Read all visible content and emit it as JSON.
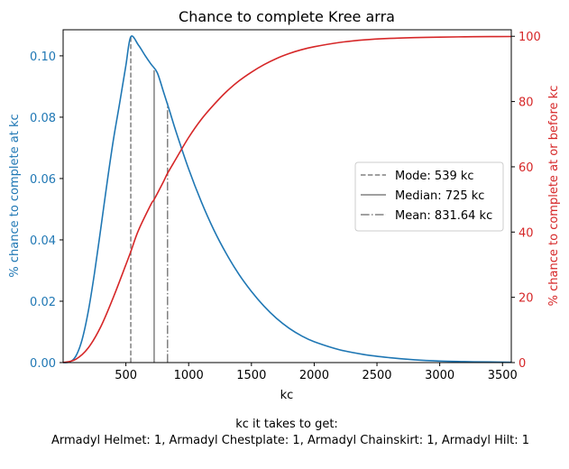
{
  "chart_data": {
    "type": "line",
    "title": "Chance to complete Kree arra",
    "xlabel": "kc",
    "ylabel_left": "% chance to complete at kc",
    "ylabel_right": "% chance to complete at or before kc",
    "xlim": [
      0,
      3570
    ],
    "ylim_left": [
      0,
      0.1085
    ],
    "ylim_right": [
      0,
      102
    ],
    "x_ticks": [
      500,
      1000,
      1500,
      2000,
      2500,
      3000,
      3500
    ],
    "x_tick_labels": [
      "500",
      "1000",
      "1500",
      "2000",
      "2500",
      "3000",
      "3500"
    ],
    "y_left_ticks": [
      0,
      0.02,
      0.04,
      0.06,
      0.08,
      0.1
    ],
    "y_left_tick_labels": [
      "0.00",
      "0.02",
      "0.04",
      "0.06",
      "0.08",
      "0.10"
    ],
    "y_right_ticks": [
      0,
      20,
      40,
      60,
      80,
      100
    ],
    "y_right_tick_labels": [
      "0",
      "20",
      "40",
      "60",
      "80",
      "100"
    ],
    "grid": false,
    "legend_position": "center-right",
    "colors": {
      "left": "#1f77b4",
      "right": "#d62728",
      "markers": "#808080"
    },
    "series": [
      {
        "axis": "left",
        "color": "#1f77b4",
        "x": [
          0,
          50,
          100,
          150,
          200,
          250,
          300,
          350,
          400,
          450,
          500,
          539,
          600,
          650,
          700,
          750,
          800,
          850,
          900,
          1000,
          1100,
          1200,
          1300,
          1400,
          1500,
          1600,
          1700,
          1800,
          1900,
          2000,
          2200,
          2400,
          2600,
          2800,
          3000,
          3200,
          3400,
          3570
        ],
        "values": [
          0,
          0.0002,
          0.002,
          0.0073,
          0.0166,
          0.0292,
          0.0437,
          0.0586,
          0.0725,
          0.0845,
          0.0969,
          0.1062,
          0.1035,
          0.1003,
          0.0973,
          0.0945,
          0.0882,
          0.0818,
          0.0752,
          0.0631,
          0.0525,
          0.0433,
          0.0355,
          0.0288,
          0.0232,
          0.0184,
          0.0144,
          0.0112,
          0.0087,
          0.0068,
          0.0042,
          0.0026,
          0.0016,
          0.0009,
          0.0005,
          0.0003,
          0.0002,
          0.0001
        ]
      },
      {
        "axis": "right",
        "color": "#d62728",
        "x": [
          0,
          100,
          200,
          300,
          400,
          500,
          539,
          600,
          700,
          725,
          800,
          831.64,
          900,
          1000,
          1100,
          1200,
          1300,
          1400,
          1500,
          1600,
          1700,
          1800,
          1900,
          2000,
          2200,
          2400,
          2600,
          2800,
          3000,
          3200,
          3400,
          3570
        ],
        "values": [
          0,
          1.0,
          4.5,
          11.0,
          20.0,
          30.0,
          34.0,
          40.5,
          48.5,
          50.0,
          55.5,
          58.0,
          62.5,
          69.0,
          74.5,
          79.0,
          83.0,
          86.3,
          89.0,
          91.3,
          93.2,
          94.7,
          95.9,
          96.8,
          98.1,
          98.9,
          99.35,
          99.6,
          99.75,
          99.85,
          99.9,
          99.93
        ]
      }
    ],
    "vlines": [
      {
        "label": "Mode: 539 kc",
        "x": 539,
        "y_top": 0.1062,
        "style": "dashed"
      },
      {
        "label": "Median: 725 kc",
        "x": 725,
        "y_top": 0.0953,
        "style": "solid"
      },
      {
        "label": "Mean: 831.64 kc",
        "x": 831.64,
        "y_top": 0.0846,
        "style": "dashdot"
      }
    ],
    "footer_line1": "kc it takes to get:",
    "footer_line2": "Armadyl Helmet: 1,  Armadyl Chestplate: 1,  Armadyl Chainskirt: 1,  Armadyl Hilt: 1"
  }
}
